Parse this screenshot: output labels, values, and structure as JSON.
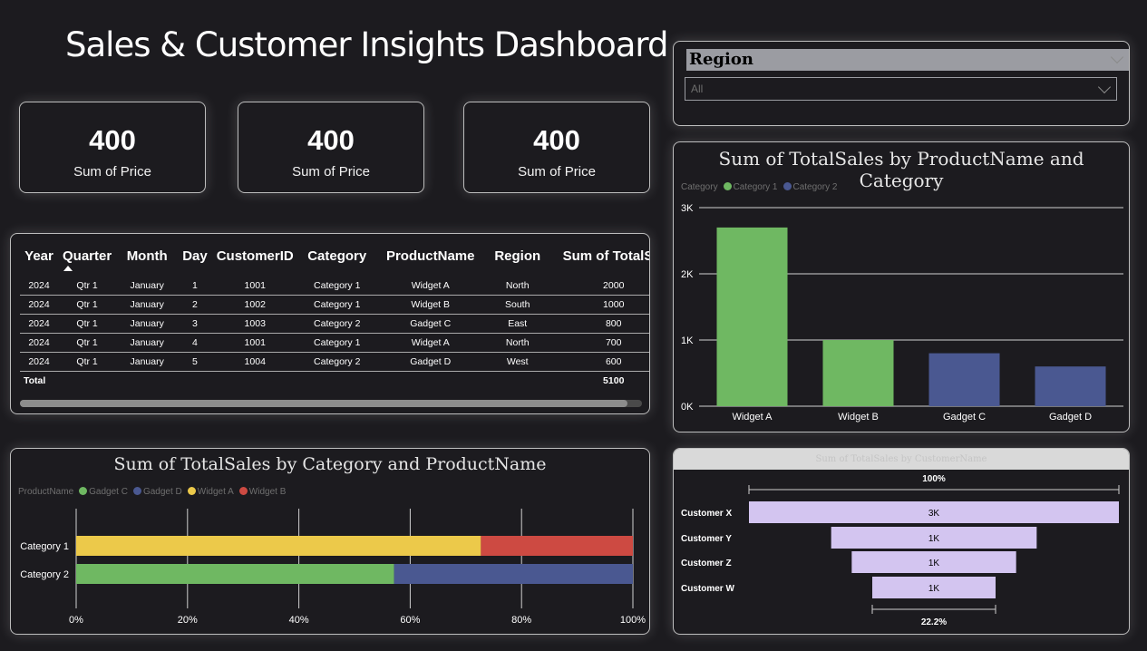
{
  "header": {
    "title": "Sales & Customer Insights Dashboard"
  },
  "kpis": [
    {
      "value": "400",
      "label": "Sum of Price"
    },
    {
      "value": "400",
      "label": "Sum of Price"
    },
    {
      "value": "400",
      "label": "Sum of Price"
    }
  ],
  "slicer": {
    "title": "Region",
    "value": "All"
  },
  "table": {
    "columns": [
      "Year",
      "Quarter",
      "Month",
      "Day",
      "CustomerID",
      "Category",
      "ProductName",
      "Region",
      "Sum of TotalSal"
    ],
    "rows": [
      [
        "2024",
        "Qtr 1",
        "January",
        "1",
        "1001",
        "Category 1",
        "Widget A",
        "North",
        "2000"
      ],
      [
        "2024",
        "Qtr 1",
        "January",
        "2",
        "1002",
        "Category 1",
        "Widget B",
        "South",
        "1000"
      ],
      [
        "2024",
        "Qtr 1",
        "January",
        "3",
        "1003",
        "Category 2",
        "Gadget C",
        "East",
        "800"
      ],
      [
        "2024",
        "Qtr 1",
        "January",
        "4",
        "1001",
        "Category 1",
        "Widget A",
        "North",
        "700"
      ],
      [
        "2024",
        "Qtr 1",
        "January",
        "5",
        "1004",
        "Category 2",
        "Gadget D",
        "West",
        "600"
      ]
    ],
    "total_label": "Total",
    "total_value": "5100"
  },
  "colors": {
    "green": "#6fb862",
    "navy": "#4a5891",
    "yellow": "#ecc94a",
    "red": "#cd4a42",
    "lavender": "#d3c5f0"
  },
  "bar_chart": {
    "title": "Sum of TotalSales by ProductName and Category",
    "legend_title": "Category",
    "legend": [
      {
        "name": "Category 1",
        "color": "#6fb862"
      },
      {
        "name": "Category 2",
        "color": "#4a5891"
      }
    ],
    "y_ticks": [
      "0K",
      "1K",
      "2K",
      "3K"
    ],
    "chart_data": {
      "type": "bar",
      "categories": [
        "Widget A",
        "Widget B",
        "Gadget C",
        "Gadget D"
      ],
      "values": [
        2700,
        1000,
        800,
        600
      ],
      "series_of_category": [
        "Category 1",
        "Category 1",
        "Category 2",
        "Category 2"
      ],
      "ylim": [
        0,
        3000
      ]
    }
  },
  "stacked_chart": {
    "title": "Sum of TotalSales by Category and ProductName",
    "legend_title": "ProductName",
    "legend": [
      {
        "name": "Gadget C",
        "color": "#6fb862"
      },
      {
        "name": "Gadget D",
        "color": "#4a5891"
      },
      {
        "name": "Widget A",
        "color": "#ecc94a"
      },
      {
        "name": "Widget B",
        "color": "#cd4a42"
      }
    ],
    "x_ticks": [
      "0%",
      "20%",
      "40%",
      "60%",
      "80%",
      "100%"
    ],
    "chart_data": {
      "type": "bar",
      "orientation": "horizontal-100%-stacked",
      "categories": [
        "Category 1",
        "Category 2"
      ],
      "series": [
        {
          "name": "Gadget C",
          "values": [
            0,
            57.1
          ]
        },
        {
          "name": "Gadget D",
          "values": [
            0,
            42.9
          ]
        },
        {
          "name": "Widget A",
          "values": [
            72.7,
            0
          ]
        },
        {
          "name": "Widget B",
          "values": [
            27.3,
            0
          ]
        }
      ],
      "xlim": [
        0,
        100
      ]
    }
  },
  "funnel": {
    "title": "Sum of TotalSales by CustomerName",
    "top_pct": "100%",
    "bottom_pct": "22.2%",
    "chart_data": {
      "type": "bar",
      "orientation": "funnel",
      "categories": [
        "Customer X",
        "Customer Y",
        "Customer Z",
        "Customer W"
      ],
      "values": [
        2700,
        1000,
        800,
        600
      ],
      "labels": [
        "3K",
        "1K",
        "1K",
        "1K"
      ]
    }
  }
}
